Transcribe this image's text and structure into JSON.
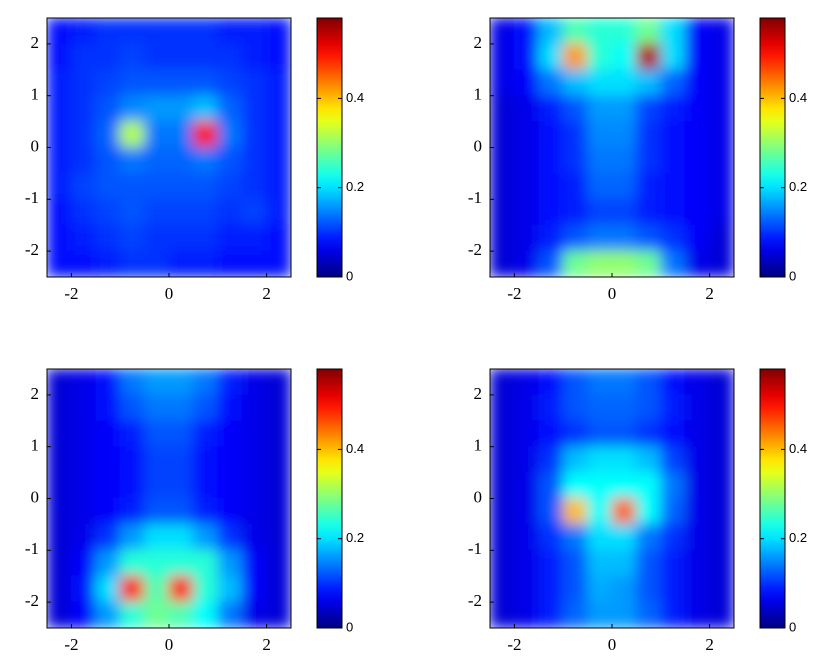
{
  "chart_data": [
    {
      "type": "heatmap",
      "colormap": "jet",
      "xlim": [
        -2.5,
        2.5
      ],
      "ylim": [
        -2.5,
        2.5
      ],
      "xticks": [
        -2,
        0,
        2
      ],
      "yticks": [
        -2,
        -1,
        0,
        1,
        2
      ],
      "clim": [
        0,
        0.58
      ],
      "cticks": [
        0,
        0.2,
        0.4
      ],
      "z": [
        [
          0.08,
          0.09,
          0.1,
          0.1,
          0.1,
          0.1,
          0.1,
          0.09,
          0.09,
          0.08
        ],
        [
          0.08,
          0.1,
          0.1,
          0.11,
          0.1,
          0.1,
          0.1,
          0.1,
          0.09,
          0.08
        ],
        [
          0.09,
          0.1,
          0.11,
          0.12,
          0.12,
          0.12,
          0.12,
          0.11,
          0.1,
          0.09
        ],
        [
          0.09,
          0.1,
          0.12,
          0.15,
          0.16,
          0.16,
          0.18,
          0.13,
          0.1,
          0.09
        ],
        [
          0.09,
          0.1,
          0.13,
          0.32,
          0.14,
          0.14,
          0.5,
          0.14,
          0.1,
          0.09
        ],
        [
          0.09,
          0.1,
          0.12,
          0.14,
          0.13,
          0.13,
          0.14,
          0.12,
          0.1,
          0.09
        ],
        [
          0.09,
          0.11,
          0.12,
          0.12,
          0.12,
          0.12,
          0.12,
          0.11,
          0.1,
          0.09
        ],
        [
          0.08,
          0.1,
          0.11,
          0.12,
          0.11,
          0.11,
          0.11,
          0.1,
          0.11,
          0.09
        ],
        [
          0.08,
          0.09,
          0.1,
          0.11,
          0.1,
          0.1,
          0.1,
          0.09,
          0.09,
          0.08
        ],
        [
          0.08,
          0.08,
          0.09,
          0.1,
          0.1,
          0.09,
          0.09,
          0.08,
          0.08,
          0.08
        ]
      ]
    },
    {
      "type": "heatmap",
      "colormap": "jet",
      "xlim": [
        -2.5,
        2.5
      ],
      "ylim": [
        -2.5,
        2.5
      ],
      "xticks": [
        -2,
        0,
        2
      ],
      "yticks": [
        -2,
        -1,
        0,
        1,
        2
      ],
      "clim": [
        0,
        0.58
      ],
      "cticks": [
        0,
        0.2,
        0.4
      ],
      "z": [
        [
          0.06,
          0.08,
          0.18,
          0.26,
          0.24,
          0.24,
          0.28,
          0.2,
          0.07,
          0.06
        ],
        [
          0.06,
          0.08,
          0.2,
          0.42,
          0.24,
          0.22,
          0.55,
          0.2,
          0.07,
          0.06
        ],
        [
          0.06,
          0.07,
          0.14,
          0.18,
          0.2,
          0.2,
          0.18,
          0.13,
          0.07,
          0.06
        ],
        [
          0.05,
          0.06,
          0.09,
          0.12,
          0.16,
          0.16,
          0.11,
          0.09,
          0.07,
          0.06
        ],
        [
          0.05,
          0.06,
          0.08,
          0.1,
          0.15,
          0.15,
          0.1,
          0.08,
          0.07,
          0.06
        ],
        [
          0.05,
          0.06,
          0.08,
          0.1,
          0.14,
          0.14,
          0.1,
          0.08,
          0.07,
          0.06
        ],
        [
          0.05,
          0.06,
          0.08,
          0.09,
          0.13,
          0.13,
          0.09,
          0.08,
          0.07,
          0.06
        ],
        [
          0.05,
          0.06,
          0.08,
          0.09,
          0.11,
          0.11,
          0.09,
          0.08,
          0.07,
          0.06
        ],
        [
          0.05,
          0.06,
          0.09,
          0.12,
          0.14,
          0.14,
          0.12,
          0.1,
          0.07,
          0.05
        ],
        [
          0.05,
          0.06,
          0.12,
          0.28,
          0.3,
          0.3,
          0.28,
          0.14,
          0.06,
          0.05
        ]
      ]
    },
    {
      "type": "heatmap",
      "colormap": "jet",
      "xlim": [
        -2.5,
        2.5
      ],
      "ylim": [
        -2.5,
        2.5
      ],
      "xticks": [
        -2,
        0,
        2
      ],
      "yticks": [
        -2,
        -1,
        0,
        1,
        2
      ],
      "clim": [
        0,
        0.58
      ],
      "cticks": [
        0,
        0.2,
        0.4
      ],
      "z": [
        [
          0.05,
          0.06,
          0.08,
          0.14,
          0.16,
          0.16,
          0.14,
          0.09,
          0.06,
          0.05
        ],
        [
          0.05,
          0.06,
          0.08,
          0.12,
          0.14,
          0.14,
          0.12,
          0.08,
          0.06,
          0.05
        ],
        [
          0.05,
          0.06,
          0.07,
          0.09,
          0.12,
          0.12,
          0.09,
          0.07,
          0.06,
          0.05
        ],
        [
          0.05,
          0.06,
          0.07,
          0.08,
          0.11,
          0.11,
          0.08,
          0.07,
          0.06,
          0.05
        ],
        [
          0.05,
          0.06,
          0.07,
          0.08,
          0.11,
          0.11,
          0.08,
          0.07,
          0.06,
          0.05
        ],
        [
          0.05,
          0.06,
          0.07,
          0.09,
          0.12,
          0.12,
          0.09,
          0.07,
          0.06,
          0.05
        ],
        [
          0.05,
          0.06,
          0.1,
          0.16,
          0.2,
          0.2,
          0.16,
          0.1,
          0.06,
          0.05
        ],
        [
          0.05,
          0.07,
          0.16,
          0.24,
          0.24,
          0.24,
          0.24,
          0.16,
          0.07,
          0.05
        ],
        [
          0.05,
          0.08,
          0.2,
          0.5,
          0.26,
          0.5,
          0.24,
          0.18,
          0.07,
          0.05
        ],
        [
          0.05,
          0.07,
          0.16,
          0.24,
          0.28,
          0.26,
          0.22,
          0.14,
          0.06,
          0.05
        ]
      ]
    },
    {
      "type": "heatmap",
      "colormap": "jet",
      "xlim": [
        -2.5,
        2.5
      ],
      "ylim": [
        -2.5,
        2.5
      ],
      "xticks": [
        -2,
        0,
        2
      ],
      "yticks": [
        -2,
        -1,
        0,
        1,
        2
      ],
      "clim": [
        0,
        0.58
      ],
      "cticks": [
        0,
        0.2,
        0.4
      ],
      "z": [
        [
          0.05,
          0.06,
          0.08,
          0.12,
          0.14,
          0.14,
          0.12,
          0.08,
          0.06,
          0.05
        ],
        [
          0.05,
          0.06,
          0.09,
          0.12,
          0.13,
          0.13,
          0.12,
          0.09,
          0.06,
          0.05
        ],
        [
          0.05,
          0.06,
          0.08,
          0.1,
          0.12,
          0.12,
          0.1,
          0.08,
          0.06,
          0.05
        ],
        [
          0.05,
          0.06,
          0.1,
          0.18,
          0.2,
          0.2,
          0.18,
          0.11,
          0.06,
          0.05
        ],
        [
          0.05,
          0.06,
          0.12,
          0.22,
          0.22,
          0.22,
          0.22,
          0.14,
          0.06,
          0.05
        ],
        [
          0.05,
          0.06,
          0.12,
          0.4,
          0.22,
          0.45,
          0.22,
          0.13,
          0.06,
          0.05
        ],
        [
          0.05,
          0.06,
          0.1,
          0.14,
          0.2,
          0.2,
          0.14,
          0.1,
          0.06,
          0.05
        ],
        [
          0.05,
          0.06,
          0.09,
          0.12,
          0.18,
          0.18,
          0.12,
          0.09,
          0.06,
          0.05
        ],
        [
          0.05,
          0.06,
          0.09,
          0.12,
          0.17,
          0.16,
          0.12,
          0.09,
          0.06,
          0.05
        ],
        [
          0.05,
          0.06,
          0.09,
          0.13,
          0.16,
          0.16,
          0.13,
          0.09,
          0.06,
          0.05
        ]
      ]
    }
  ]
}
